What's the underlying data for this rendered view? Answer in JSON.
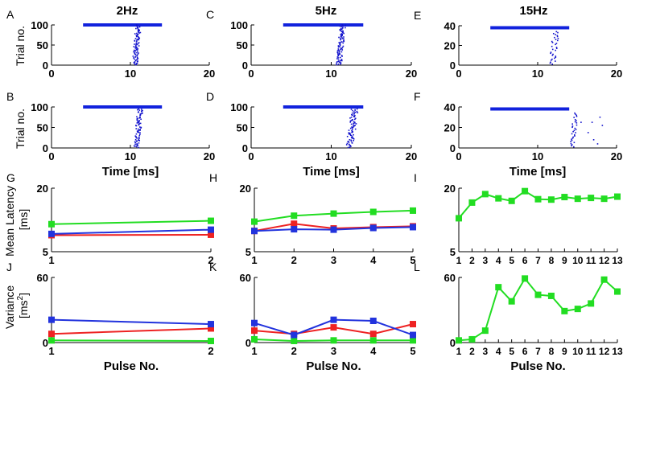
{
  "figure": {
    "column_titles": [
      "2Hz",
      "5Hz",
      "15Hz"
    ],
    "xlabels": {
      "time": "Time [ms]",
      "pulse": "Pulse No."
    },
    "ylabels": {
      "trial": "Trial no.",
      "latency_line1": "Mean Latency",
      "latency_line2": "[ms]",
      "variance_line1": "Variance",
      "variance_line2": "[ms",
      "variance_sup": "2",
      "variance_close": "]"
    },
    "colors": {
      "green": "#22dd22",
      "red": "#ee2222",
      "blue": "#2233dd",
      "raster": "#1111cc"
    }
  },
  "chart_data": [
    {
      "panel": "A",
      "type": "scatter",
      "subtype": "raster",
      "freq": "2Hz",
      "xlim": [
        0,
        20
      ],
      "ylim": [
        0,
        100
      ],
      "xticks": [
        0,
        10,
        20
      ],
      "yticks": [
        0,
        50,
        100
      ],
      "stim_bar": {
        "x": [
          4,
          14
        ],
        "y": 100
      },
      "spikes": {
        "mode": "band",
        "n": 100,
        "y_max": 100,
        "x_center": 10.8,
        "x_spread": 0.35,
        "drift": 0.4
      }
    },
    {
      "panel": "C",
      "type": "scatter",
      "subtype": "raster",
      "freq": "5Hz",
      "xlim": [
        0,
        20
      ],
      "ylim": [
        0,
        100
      ],
      "xticks": [
        0,
        10,
        20
      ],
      "yticks": [
        0,
        50,
        100
      ],
      "stim_bar": {
        "x": [
          4,
          14
        ],
        "y": 100
      },
      "spikes": {
        "mode": "band",
        "n": 100,
        "y_max": 100,
        "x_center": 11.2,
        "x_spread": 0.35,
        "drift": 0.5
      }
    },
    {
      "panel": "E",
      "type": "scatter",
      "subtype": "raster",
      "freq": "15Hz",
      "xlim": [
        0,
        20
      ],
      "ylim": [
        0,
        40
      ],
      "xticks": [
        0,
        10,
        20
      ],
      "yticks": [
        0,
        20,
        40
      ],
      "stim_bar": {
        "x": [
          4,
          14
        ],
        "y": 38
      },
      "spikes": {
        "mode": "band",
        "n": 34,
        "y_max": 34,
        "x_center": 12.1,
        "x_spread": 0.4,
        "drift": 0.5
      }
    },
    {
      "panel": "B",
      "type": "scatter",
      "subtype": "raster",
      "xlim": [
        0,
        20
      ],
      "ylim": [
        0,
        100
      ],
      "xticks": [
        0,
        10,
        20
      ],
      "yticks": [
        0,
        50,
        100
      ],
      "stim_bar": {
        "x": [
          4,
          14
        ],
        "y": 100
      },
      "xlabel": "time",
      "spikes": {
        "mode": "band",
        "n": 95,
        "y_max": 95,
        "x_center": 11.0,
        "x_spread": 0.35,
        "drift": 0.5
      }
    },
    {
      "panel": "D",
      "type": "scatter",
      "subtype": "raster",
      "xlim": [
        0,
        20
      ],
      "ylim": [
        0,
        100
      ],
      "xticks": [
        0,
        10,
        20
      ],
      "yticks": [
        0,
        50,
        100
      ],
      "stim_bar": {
        "x": [
          4,
          14
        ],
        "y": 100
      },
      "xlabel": "time",
      "spikes": {
        "mode": "band",
        "n": 95,
        "y_max": 95,
        "x_center": 12.6,
        "x_spread": 0.45,
        "drift": 0.7
      }
    },
    {
      "panel": "F",
      "type": "scatter",
      "subtype": "raster",
      "xlim": [
        0,
        20
      ],
      "ylim": [
        0,
        40
      ],
      "xticks": [
        0,
        10,
        20
      ],
      "yticks": [
        0,
        20,
        40
      ],
      "stim_bar": {
        "x": [
          4,
          14
        ],
        "y": 38
      },
      "xlabel": "time",
      "spikes": {
        "mode": "band",
        "n": 32,
        "y_max": 34,
        "x_center": 14.6,
        "x_spread": 0.3,
        "drift": 0.4,
        "extra": [
          [
            15.5,
            25
          ],
          [
            16.9,
            25
          ],
          [
            17.1,
            8
          ],
          [
            17.6,
            4
          ],
          [
            17.9,
            30
          ],
          [
            18.2,
            22
          ],
          [
            16.4,
            15
          ]
        ]
      }
    },
    {
      "panel": "G",
      "type": "line",
      "xlim": [
        1,
        2
      ],
      "ylim": [
        5,
        20
      ],
      "xticks": [
        1,
        2
      ],
      "yticks": [
        5,
        20
      ],
      "ylabel": "latency",
      "series": [
        {
          "color": "green",
          "x": [
            1,
            2
          ],
          "y": [
            11.5,
            12.3
          ]
        },
        {
          "color": "red",
          "x": [
            1,
            2
          ],
          "y": [
            8.9,
            9.0
          ]
        },
        {
          "color": "blue",
          "x": [
            1,
            2
          ],
          "y": [
            9.2,
            10.2
          ]
        }
      ]
    },
    {
      "panel": "H",
      "type": "line",
      "xlim": [
        1,
        5
      ],
      "ylim": [
        5,
        20
      ],
      "xticks": [
        1,
        2,
        3,
        4,
        5
      ],
      "yticks": [
        5,
        20
      ],
      "series": [
        {
          "color": "green",
          "x": [
            1,
            2,
            3,
            4,
            5
          ],
          "y": [
            12.1,
            13.5,
            14.0,
            14.4,
            14.7
          ]
        },
        {
          "color": "red",
          "x": [
            1,
            2,
            3,
            4,
            5
          ],
          "y": [
            9.9,
            11.6,
            10.5,
            10.8,
            11.0
          ]
        },
        {
          "color": "blue",
          "x": [
            1,
            2,
            3,
            4,
            5
          ],
          "y": [
            9.9,
            10.3,
            10.2,
            10.6,
            10.8
          ]
        }
      ]
    },
    {
      "panel": "I",
      "type": "line",
      "xlim": [
        1,
        13
      ],
      "ylim": [
        5,
        20
      ],
      "xticks": [
        1,
        2,
        3,
        4,
        5,
        6,
        7,
        8,
        9,
        10,
        11,
        12,
        13
      ],
      "yticks": [
        5,
        20
      ],
      "series": [
        {
          "color": "green",
          "x": [
            1,
            2,
            3,
            4,
            5,
            6,
            7,
            8,
            9,
            10,
            11,
            12,
            13
          ],
          "y": [
            12.9,
            16.6,
            18.6,
            17.6,
            17.0,
            19.3,
            17.4,
            17.3,
            17.9,
            17.5,
            17.7,
            17.5,
            18.0
          ]
        }
      ]
    },
    {
      "panel": "J",
      "type": "line",
      "xlim": [
        1,
        2
      ],
      "ylim": [
        0,
        60
      ],
      "xticks": [
        1,
        2
      ],
      "yticks": [
        0,
        60
      ],
      "ylabel": "variance",
      "xlabel": "pulse",
      "series": [
        {
          "color": "green",
          "x": [
            1,
            2
          ],
          "y": [
            2,
            1.5
          ]
        },
        {
          "color": "red",
          "x": [
            1,
            2
          ],
          "y": [
            8,
            13
          ]
        },
        {
          "color": "blue",
          "x": [
            1,
            2
          ],
          "y": [
            21,
            17
          ]
        }
      ]
    },
    {
      "panel": "K",
      "type": "line",
      "xlim": [
        1,
        5
      ],
      "ylim": [
        0,
        60
      ],
      "xticks": [
        1,
        2,
        3,
        4,
        5
      ],
      "yticks": [
        0,
        60
      ],
      "xlabel": "pulse",
      "series": [
        {
          "color": "green",
          "x": [
            1,
            2,
            3,
            4,
            5
          ],
          "y": [
            3,
            1.5,
            2,
            2,
            2
          ]
        },
        {
          "color": "red",
          "x": [
            1,
            2,
            3,
            4,
            5
          ],
          "y": [
            11,
            8,
            14,
            8,
            17
          ]
        },
        {
          "color": "blue",
          "x": [
            1,
            2,
            3,
            4,
            5
          ],
          "y": [
            18,
            7,
            21,
            20,
            7
          ]
        }
      ]
    },
    {
      "panel": "L",
      "type": "line",
      "xlim": [
        1,
        13
      ],
      "ylim": [
        0,
        60
      ],
      "xticks": [
        1,
        2,
        3,
        4,
        5,
        6,
        7,
        8,
        9,
        10,
        11,
        12,
        13
      ],
      "yticks": [
        0,
        60
      ],
      "xlabel": "pulse",
      "series": [
        {
          "color": "green",
          "x": [
            1,
            2,
            3,
            4,
            5,
            6,
            7,
            8,
            9,
            10,
            11,
            12,
            13
          ],
          "y": [
            2,
            3,
            11,
            51,
            38,
            59,
            44,
            43,
            29,
            31,
            36,
            58,
            47
          ]
        }
      ]
    }
  ]
}
